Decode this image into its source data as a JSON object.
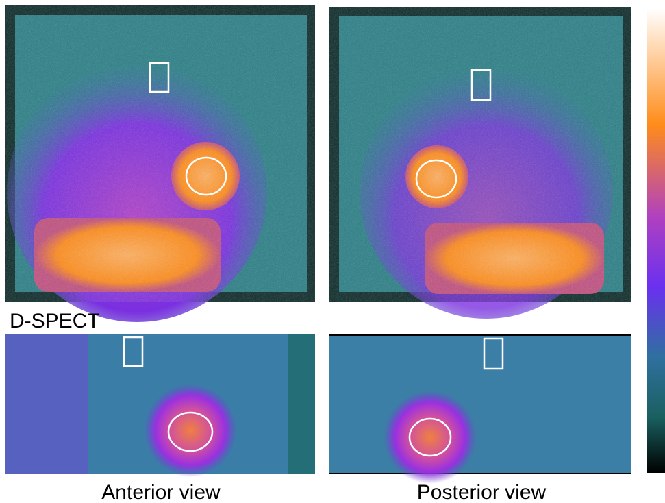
{
  "section_label": "D-SPECT",
  "captions": [
    "Anterior view",
    "Posterior view"
  ]
}
